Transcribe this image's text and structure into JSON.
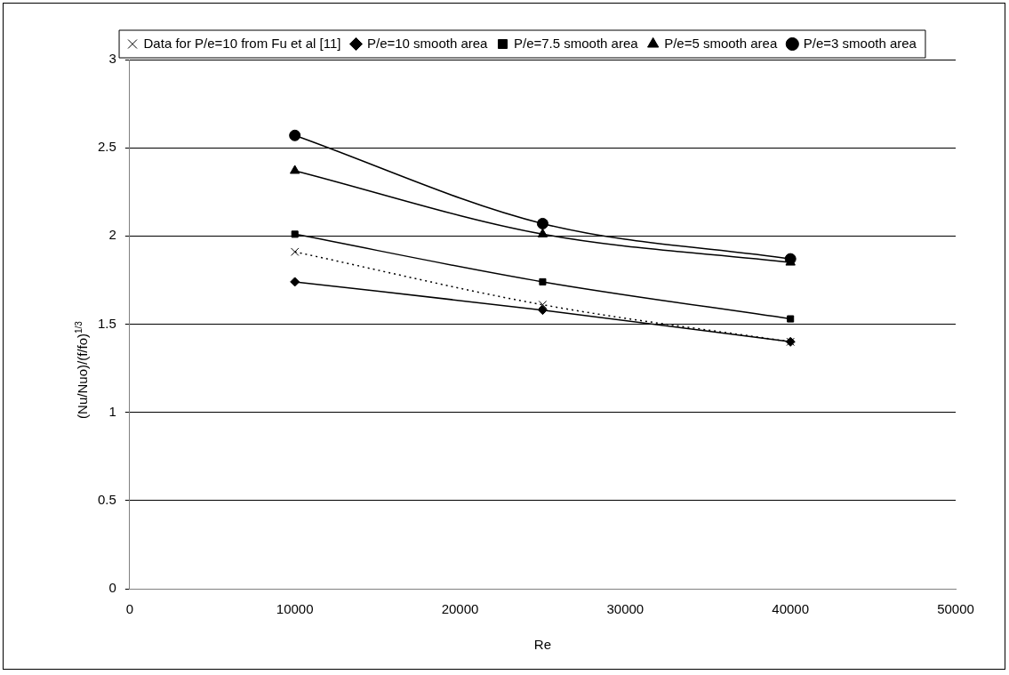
{
  "chart_data": {
    "type": "line",
    "xlabel": "Re",
    "ylabel": "(Nu/Nuo)/(f/fo)$^{1/3}$",
    "x": [
      10000,
      25000,
      40000
    ],
    "xlim": [
      0,
      50000
    ],
    "xticks": [
      0,
      10000,
      20000,
      30000,
      40000,
      50000
    ],
    "ylim": [
      0,
      3
    ],
    "yticks": [
      0,
      0.5,
      1,
      1.5,
      2,
      2.5,
      3
    ],
    "grid": "y",
    "legend": "top",
    "series": [
      {
        "name": "Data for P/e=10 from Fu et al [11]",
        "color": "#000000",
        "values": [
          1.91,
          1.61,
          1.4
        ],
        "marker": "cross",
        "line_style": "dotted"
      },
      {
        "name": "P/e=10 smooth area",
        "color": "#000000",
        "values": [
          1.74,
          1.58,
          1.4
        ],
        "marker": "diamond",
        "line_style": "solid"
      },
      {
        "name": "P/e=7.5 smooth area",
        "color": "#000000",
        "values": [
          2.01,
          1.74,
          1.53
        ],
        "marker": "square",
        "line_style": "solid"
      },
      {
        "name": "P/e=5 smooth area",
        "color": "#000000",
        "values": [
          2.37,
          2.01,
          1.85
        ],
        "marker": "triangle",
        "line_style": "solid"
      },
      {
        "name": "P/e=3 smooth area",
        "color": "#000000",
        "values": [
          2.57,
          2.07,
          1.87
        ],
        "marker": "circle",
        "line_style": "solid"
      }
    ]
  }
}
